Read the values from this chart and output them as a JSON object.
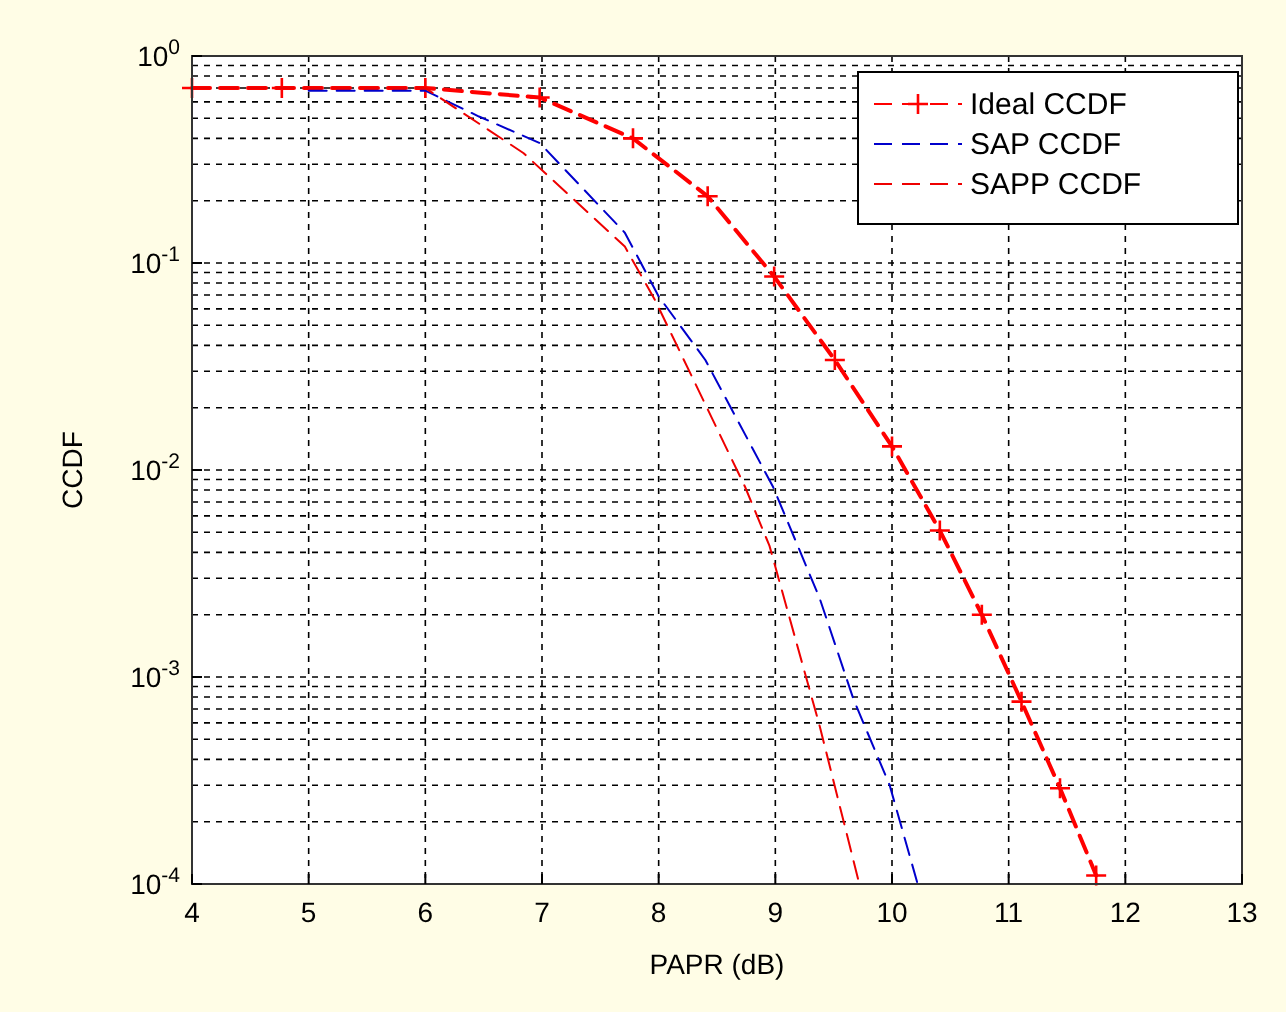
{
  "chart_data": {
    "type": "line",
    "xlabel": "PAPR (dB)",
    "ylabel": "CCDF",
    "log": "y",
    "grid": true,
    "legend": "top right",
    "xlim": [
      4,
      13
    ],
    "xticks": [
      4,
      5,
      6,
      7,
      8,
      9,
      10,
      11,
      12,
      13
    ],
    "ylim": [
      0.0001,
      1
    ],
    "yticks": [
      {
        "value": 1,
        "label": "10$^{0}$"
      },
      {
        "value": 0.1,
        "label": "10$^{-1}$"
      },
      {
        "value": 0.01,
        "label": "10$^{-2}$"
      },
      {
        "value": 0.001,
        "label": "10$^{-3}$"
      },
      {
        "value": 0.0001,
        "label": "10$^{-4}$"
      }
    ],
    "series": [
      {
        "name": "Ideal CCDF",
        "color": "#ff0000",
        "marker": "cross",
        "line_style": "dashed",
        "x": [
          4,
          4.77,
          6.0,
          6.98,
          7.78,
          8.42,
          8.99,
          9.51,
          10.0,
          10.41,
          10.77,
          11.11,
          11.44,
          11.75
        ],
        "values": [
          0.7,
          0.7,
          0.7,
          0.63,
          0.4,
          0.21,
          0.086,
          0.034,
          0.013,
          0.0051,
          0.002,
          0.00076,
          0.00029,
          0.00011
        ]
      },
      {
        "name": "SAP CCDF",
        "color": "#0000cc",
        "marker": "none",
        "line_style": "dashed",
        "x": [
          5,
          6,
          6.46,
          6.98,
          7.71,
          8.0,
          8.4,
          8.98,
          9.38,
          9.67,
          9.98,
          10.22
        ],
        "values": [
          0.68,
          0.68,
          0.51,
          0.38,
          0.14,
          0.069,
          0.034,
          0.0083,
          0.0024,
          0.00078,
          0.0003,
          0.0001
        ]
      },
      {
        "name": "SAPP CCDF",
        "color": "#ee0000",
        "marker": "none",
        "line_style": "dashed",
        "x": [
          4,
          5,
          6,
          6.84,
          7.71,
          7.97,
          8.74,
          8.95,
          9.38,
          9.72
        ],
        "values": [
          0.7,
          0.7,
          0.7,
          0.34,
          0.12,
          0.066,
          0.0083,
          0.0043,
          0.00058,
          0.0001
        ]
      }
    ]
  }
}
